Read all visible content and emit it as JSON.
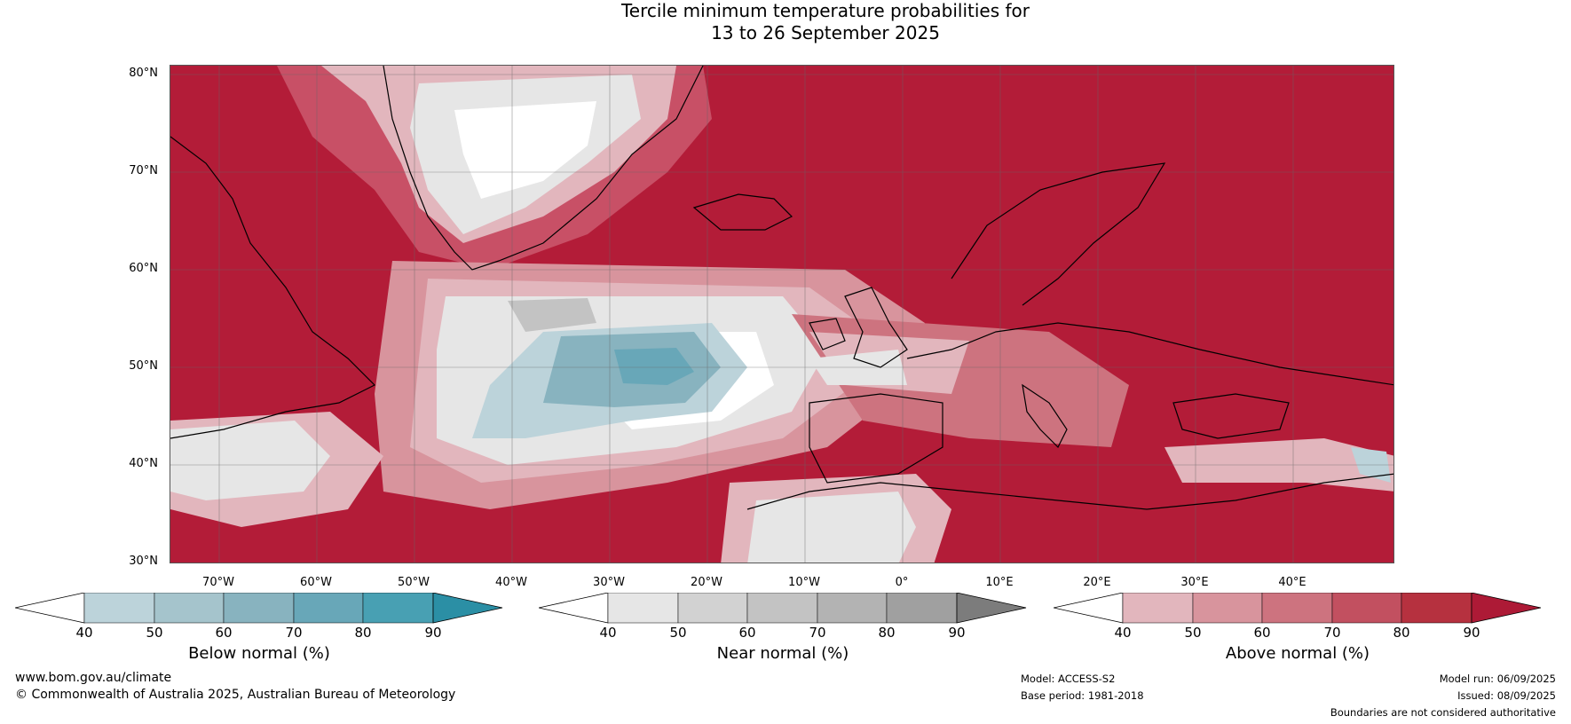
{
  "title": {
    "line1": "Tercile minimum temperature probabilities for",
    "line2": "13 to 26 September 2025"
  },
  "map": {
    "lat_labels": [
      "80°N",
      "70°N",
      "60°N",
      "50°N",
      "40°N",
      "30°N"
    ],
    "lon_labels": [
      "70°W",
      "60°W",
      "50°W",
      "40°W",
      "30°W",
      "20°W",
      "10°W",
      "0°",
      "10°E",
      "20°E",
      "30°E",
      "40°E"
    ],
    "colors": {
      "above": [
        "#e2b6bd",
        "#d8949d",
        "#cd737f",
        "#c25060",
        "#b6313f",
        "#ad1a36"
      ],
      "near": [
        "#e6e6e6",
        "#d2d2d2",
        "#c3c3c3",
        "#b3b3b3",
        "#a0a0a0",
        "#7c7c7c"
      ],
      "below": [
        "#bcd3da",
        "#a5c4cc",
        "#88b3bf",
        "#68a7b8",
        "#48a0b3",
        "#2b8fa5"
      ],
      "coast": "#000000",
      "border": "#808080"
    }
  },
  "colorbars": [
    {
      "id": "below",
      "label": "Below normal (%)",
      "ticks": [
        "40",
        "50",
        "60",
        "70",
        "80",
        "90"
      ]
    },
    {
      "id": "near",
      "label": "Near normal (%)",
      "ticks": [
        "40",
        "50",
        "60",
        "70",
        "80",
        "90"
      ]
    },
    {
      "id": "above",
      "label": "Above normal (%)",
      "ticks": [
        "40",
        "50",
        "60",
        "70",
        "80",
        "90"
      ]
    }
  ],
  "footer": {
    "website": "www.bom.gov.au/climate",
    "copyright": "© Commonwealth of Australia 2025, Australian Bureau of Meteorology",
    "model": "Model: ACCESS-S2",
    "base_period": "Base period: 1981-2018",
    "model_run": "Model run: 06/09/2025",
    "issued": "Issued: 08/09/2025",
    "disclaimer": "Boundaries are not considered authoritative"
  }
}
